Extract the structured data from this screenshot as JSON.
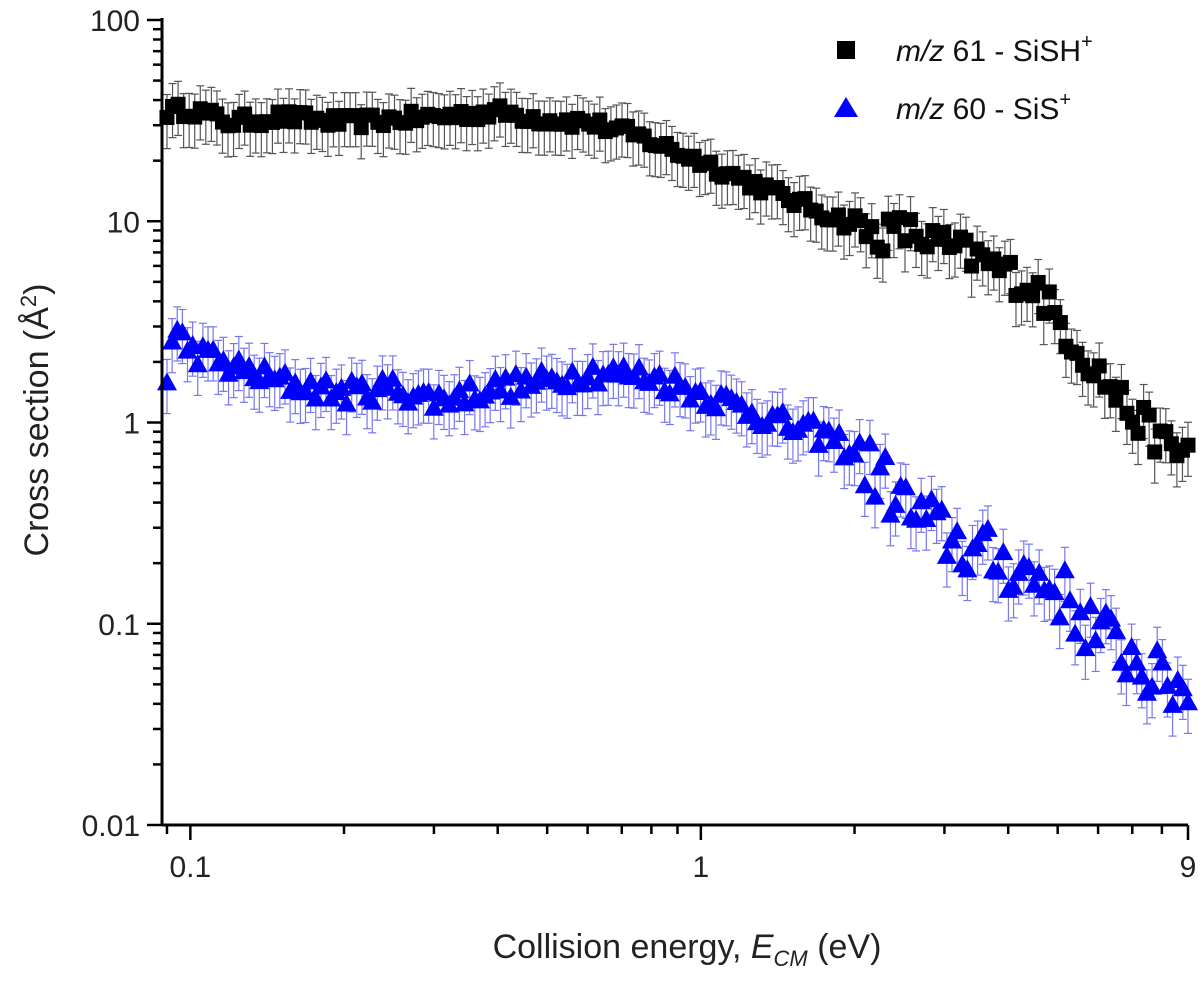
{
  "chart_data": {
    "type": "scatter",
    "log_x": true,
    "log_y": true,
    "xlim": [
      0.088,
      9
    ],
    "ylim": [
      0.01,
      100
    ],
    "x_ticks": [
      {
        "value": 0.1,
        "label": "0.1"
      },
      {
        "value": 1,
        "label": "1"
      },
      {
        "value": 9,
        "label": "9"
      }
    ],
    "y_ticks": [
      {
        "value": 0.01,
        "label": "0.01"
      },
      {
        "value": 0.1,
        "label": "0.1"
      },
      {
        "value": 1,
        "label": "1"
      },
      {
        "value": 10,
        "label": "10"
      },
      {
        "value": 100,
        "label": "100"
      }
    ],
    "xlabel": {
      "main": "Collision energy, ",
      "var": "E",
      "sub": "CM",
      "unit": " (eV)"
    },
    "ylabel": {
      "main": "Cross section (Å",
      "sup": "2",
      "close": ")"
    },
    "legend": {
      "position": "top-right",
      "entries": [
        {
          "italic": "m/z",
          "text": " 61 - SiSH",
          "sup": "+",
          "marker": "square",
          "color": "#000000"
        },
        {
          "italic": "m/z",
          "text": " 60 - SiS",
          "sup": "+",
          "marker": "triangle",
          "color": "#0000ff"
        }
      ]
    },
    "grid": false,
    "error_bar_rel": 0.3,
    "series": [
      {
        "name": "m/z 61 - SiSH+",
        "marker": "square",
        "color": "#000000",
        "errorbar_color": "#555555",
        "anchors": [
          [
            0.09,
            35
          ],
          [
            0.1,
            36
          ],
          [
            0.12,
            31
          ],
          [
            0.15,
            33
          ],
          [
            0.2,
            31
          ],
          [
            0.3,
            33
          ],
          [
            0.4,
            35
          ],
          [
            0.5,
            32
          ],
          [
            0.6,
            31
          ],
          [
            0.7,
            28
          ],
          [
            0.8,
            25
          ],
          [
            0.9,
            22
          ],
          [
            1.0,
            20
          ],
          [
            1.15,
            17
          ],
          [
            1.3,
            15
          ],
          [
            1.6,
            12
          ],
          [
            2.0,
            9.5
          ],
          [
            2.2,
            8.5
          ],
          [
            2.5,
            9.0
          ],
          [
            3.0,
            7.5
          ],
          [
            3.5,
            6.5
          ],
          [
            4.0,
            5.5
          ],
          [
            4.6,
            4.5
          ],
          [
            5.0,
            3.2
          ],
          [
            5.6,
            2.2
          ],
          [
            6.2,
            1.6
          ],
          [
            7.0,
            1.1
          ],
          [
            8.0,
            0.8
          ],
          [
            8.6,
            0.7
          ],
          [
            9.0,
            0.75
          ]
        ],
        "n_points": 185,
        "scatter": 0.035
      },
      {
        "name": "m/z 60 - SiS+",
        "marker": "triangle",
        "color": "#0000ff",
        "errorbar_color": "#7777ee",
        "anchors": [
          [
            0.09,
            1.7
          ],
          [
            0.093,
            2.9
          ],
          [
            0.1,
            2.3
          ],
          [
            0.12,
            1.9
          ],
          [
            0.15,
            1.6
          ],
          [
            0.2,
            1.4
          ],
          [
            0.25,
            1.5
          ],
          [
            0.3,
            1.3
          ],
          [
            0.4,
            1.5
          ],
          [
            0.5,
            1.6
          ],
          [
            0.6,
            1.8
          ],
          [
            0.8,
            1.7
          ],
          [
            1.0,
            1.4
          ],
          [
            1.2,
            1.2
          ],
          [
            1.5,
            0.95
          ],
          [
            1.8,
            0.85
          ],
          [
            2.0,
            0.7
          ],
          [
            2.3,
            0.5
          ],
          [
            2.6,
            0.35
          ],
          [
            3.0,
            0.28
          ],
          [
            3.5,
            0.22
          ],
          [
            4.0,
            0.2
          ],
          [
            4.5,
            0.17
          ],
          [
            5.0,
            0.15
          ],
          [
            5.5,
            0.11
          ],
          [
            6.0,
            0.09
          ],
          [
            7.0,
            0.07
          ],
          [
            8.0,
            0.05
          ],
          [
            9.0,
            0.05
          ]
        ],
        "n_points": 200,
        "scatter": 0.06
      }
    ]
  }
}
